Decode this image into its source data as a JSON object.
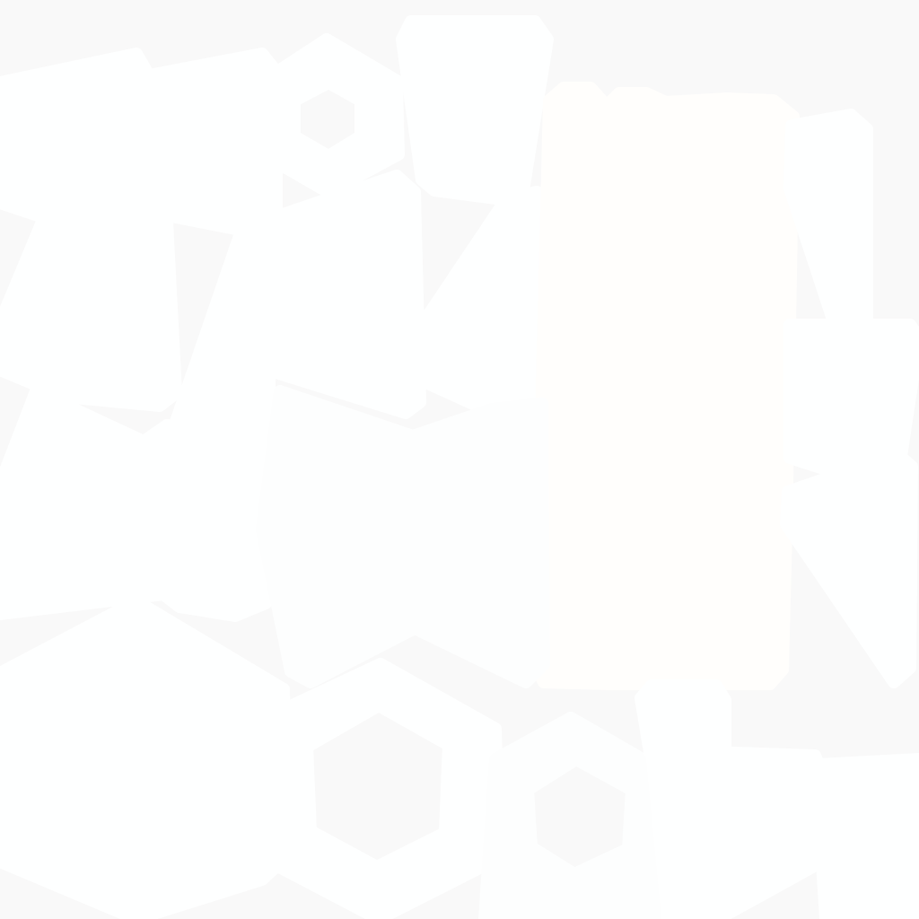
{
  "colors": {
    "background": "#f9f9f9",
    "shape_fill": "#feffff",
    "shape_fill_warm": "#fffefc",
    "shape_fill_cool": "#fdfefe",
    "hole_fill": "#f9f9f9"
  }
}
